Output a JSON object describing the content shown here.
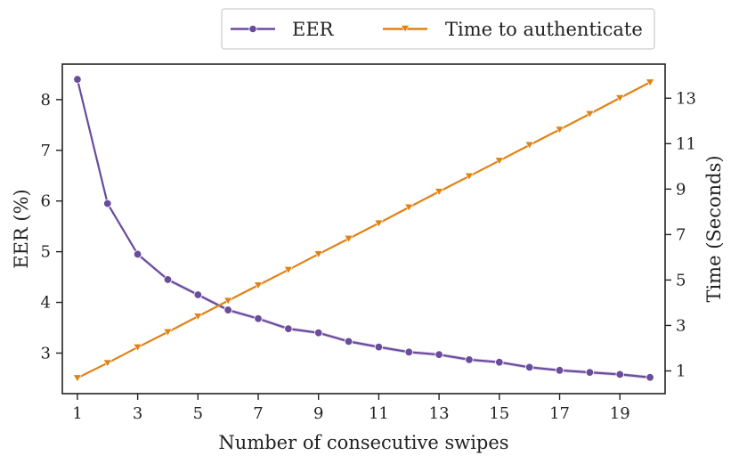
{
  "chart_data": {
    "type": "line",
    "x": [
      1,
      2,
      3,
      4,
      5,
      6,
      7,
      8,
      9,
      10,
      11,
      12,
      13,
      14,
      15,
      16,
      17,
      18,
      19,
      20
    ],
    "xlabel": "Number of consecutive swipes",
    "xticks": [
      1,
      3,
      5,
      7,
      9,
      11,
      13,
      15,
      17,
      19
    ],
    "xlim": [
      0.5,
      20.5
    ],
    "y_left": {
      "label": "EER (%)",
      "lim": [
        2.2,
        8.7
      ],
      "ticks": [
        3,
        4,
        5,
        6,
        7,
        8
      ]
    },
    "y_right": {
      "label": "Time (Seconds)",
      "lim": [
        0.0,
        14.5
      ],
      "ticks": [
        1,
        3,
        5,
        7,
        9,
        11,
        13
      ]
    },
    "series": [
      {
        "name": "EER",
        "axis": "left",
        "marker": "circle",
        "color": "#6a4c9c",
        "band_color": "#c9b6e0",
        "values": [
          8.4,
          5.95,
          4.95,
          4.45,
          4.15,
          3.85,
          3.68,
          3.48,
          3.4,
          3.23,
          3.12,
          3.02,
          2.97,
          2.87,
          2.82,
          2.72,
          2.66,
          2.62,
          2.58,
          2.52
        ]
      },
      {
        "name": "Time to authenticate",
        "axis": "right",
        "marker": "triangle-down",
        "color": "#e08214",
        "values": [
          0.69,
          1.35,
          2.04,
          2.71,
          3.4,
          4.09,
          4.77,
          5.45,
          6.14,
          6.82,
          7.5,
          8.2,
          8.89,
          9.57,
          10.25,
          10.94,
          11.62,
          12.31,
          13.01,
          13.7
        ]
      }
    ],
    "legend": {
      "position": "top-right, outside",
      "entries": [
        "EER",
        "Time to authenticate"
      ]
    },
    "grid": false
  }
}
